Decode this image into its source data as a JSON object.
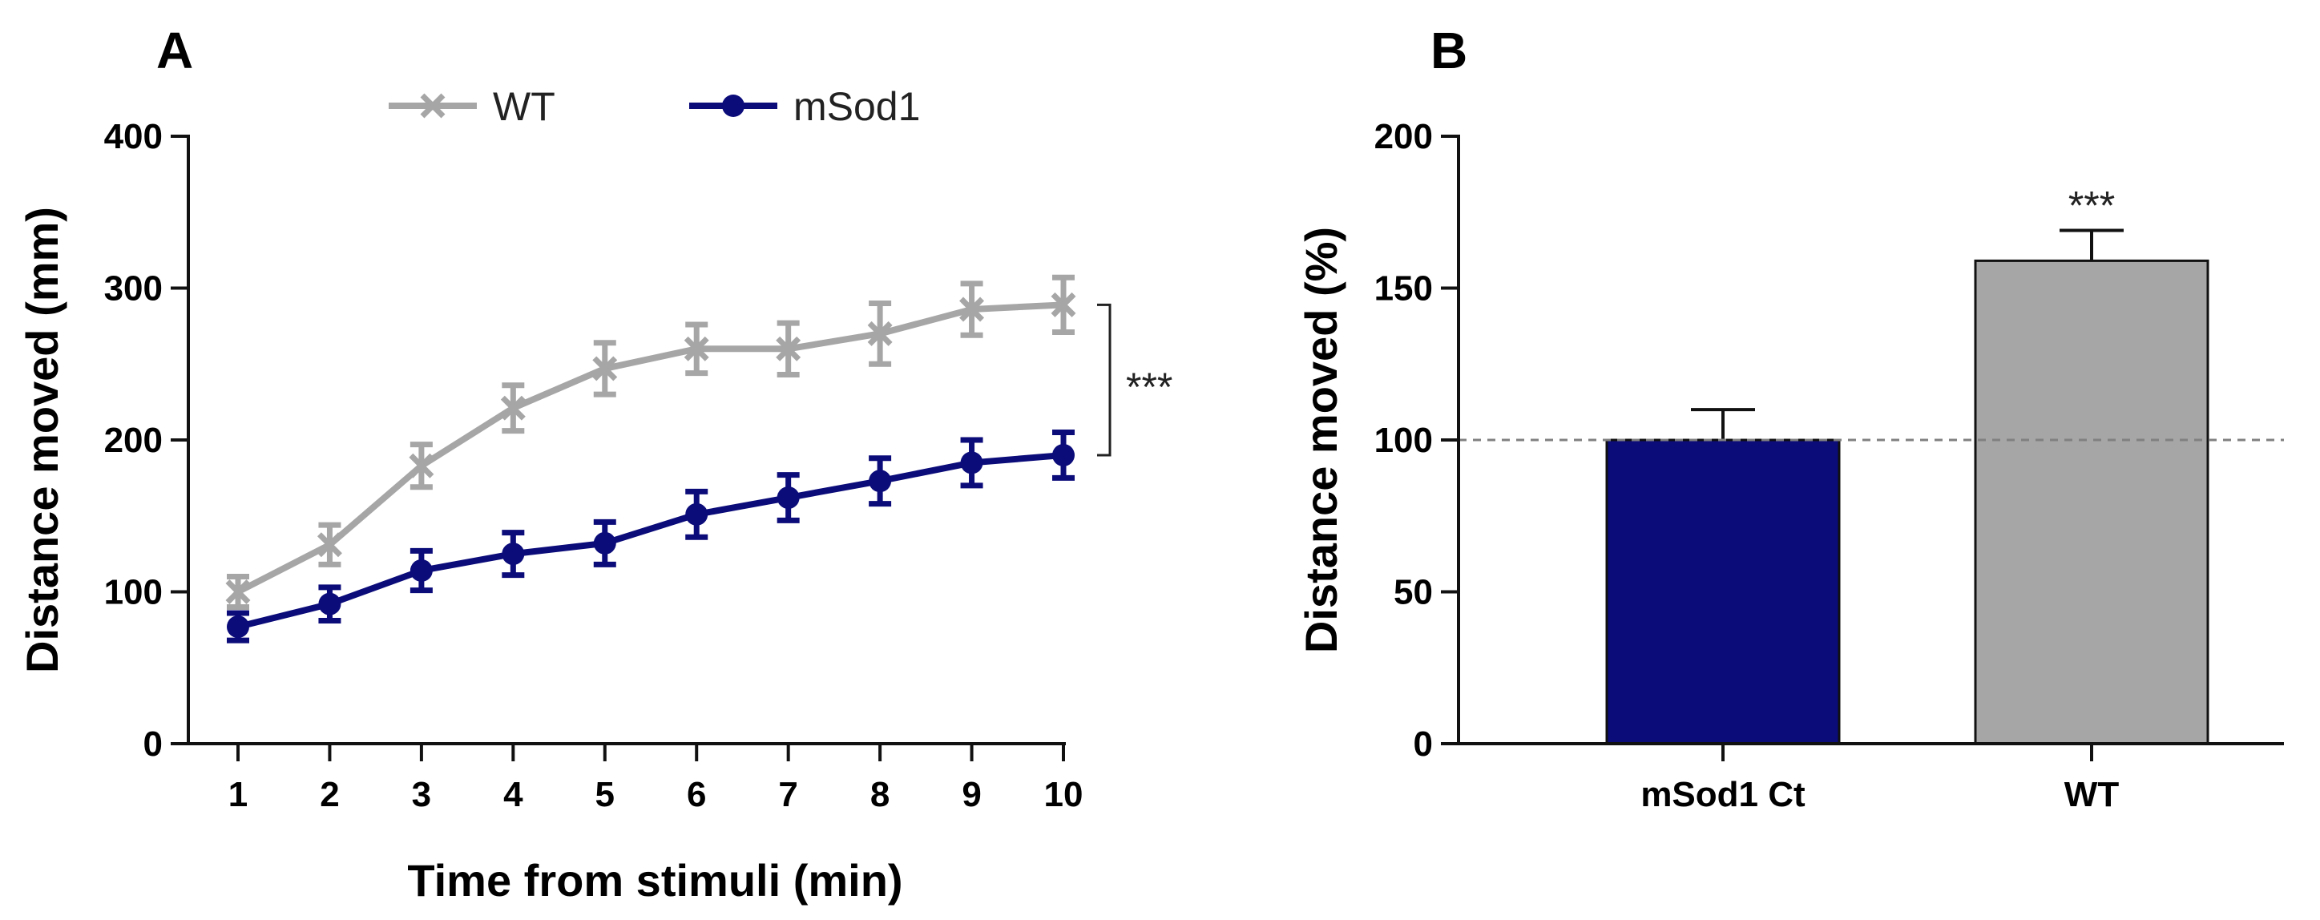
{
  "panels": {
    "a": "A",
    "b": "B"
  },
  "colors": {
    "wt": "#a6a6a6",
    "msod1": "#0b0b7a",
    "axis": "#111111",
    "ref_line": "#808080"
  },
  "chart_data": [
    {
      "type": "line",
      "panel": "A",
      "title": "",
      "xlabel": "Time from stimuli (min)",
      "ylabel": "Distance moved (mm)",
      "x": [
        1,
        2,
        3,
        4,
        5,
        6,
        7,
        8,
        9,
        10
      ],
      "x_tick_labels": [
        "1",
        "2",
        "3",
        "4",
        "5",
        "6",
        "7",
        "8",
        "9",
        "10"
      ],
      "ylim": [
        0,
        400
      ],
      "y_ticks": [
        0,
        100,
        200,
        300,
        400
      ],
      "y_tick_labels": [
        "0",
        "100",
        "200",
        "300",
        "400"
      ],
      "grid": false,
      "legend_position": "top",
      "series": [
        {
          "name": "WT",
          "marker": "x",
          "color": "#a6a6a6",
          "values": [
            100,
            131,
            183,
            221,
            247,
            260,
            260,
            270,
            286,
            289
          ],
          "errors": [
            10,
            13,
            14,
            15,
            17,
            16,
            17,
            20,
            17,
            18
          ]
        },
        {
          "name": "mSod1",
          "marker": "circle",
          "color": "#0b0b7a",
          "values": [
            77,
            92,
            114,
            125,
            132,
            151,
            162,
            173,
            185,
            190
          ],
          "errors": [
            9,
            11,
            13,
            14,
            14,
            15,
            15,
            15,
            15,
            15
          ]
        }
      ],
      "annotations": [
        {
          "text": "***",
          "between": [
            190,
            289
          ],
          "at_x": 10
        }
      ]
    },
    {
      "type": "bar",
      "panel": "B",
      "title": "",
      "xlabel": "",
      "ylabel": "Distance moved (%)",
      "categories": [
        "mSod1 Ct",
        "WT"
      ],
      "values": [
        100,
        159
      ],
      "errors": [
        10,
        10
      ],
      "bar_colors": [
        "#0b0b7a",
        "#a6a6a6"
      ],
      "ylim": [
        0,
        200
      ],
      "y_ticks": [
        0,
        50,
        100,
        150,
        200
      ],
      "y_tick_labels": [
        "0",
        "50",
        "100",
        "150",
        "200"
      ],
      "grid": false,
      "reference_line": 100,
      "annotations": [
        {
          "text": "***",
          "category": "WT"
        }
      ]
    }
  ]
}
